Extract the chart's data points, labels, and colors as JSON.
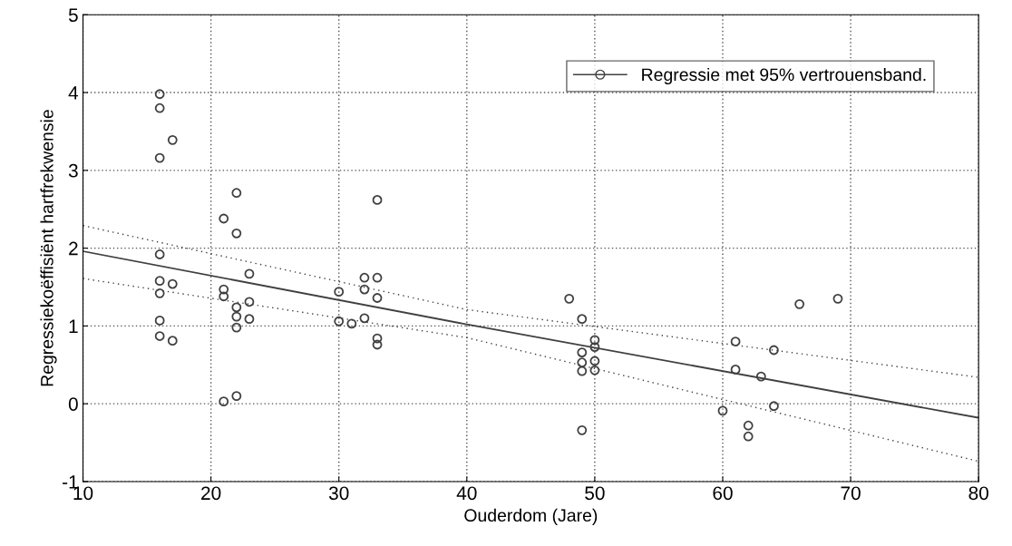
{
  "chart_data": {
    "type": "scatter",
    "xlabel": "Ouderdom (Jare)",
    "ylabel": "Regressiekoëffisiënt hartfrekwensie",
    "xlim": [
      10,
      80
    ],
    "xticks": [
      10,
      20,
      30,
      40,
      50,
      60,
      70,
      80
    ],
    "ylim": [
      -1,
      5
    ],
    "yticks": [
      -1,
      0,
      1,
      2,
      3,
      4,
      5
    ],
    "grid": true,
    "legend": "top right",
    "series": [
      {
        "name": "Regressie met 95% vertrouensband.",
        "marker": "circle",
        "color": "#404040",
        "x": [
          16,
          16,
          16,
          16,
          16,
          16,
          16,
          16,
          17,
          17,
          17,
          21,
          21,
          21,
          21,
          22,
          22,
          22,
          22,
          22,
          22,
          23,
          23,
          23,
          30,
          30,
          31,
          32,
          32,
          32,
          33,
          33,
          33,
          33,
          33,
          48,
          49,
          49,
          49,
          49,
          49,
          50,
          50,
          50,
          50,
          60,
          61,
          61,
          62,
          62,
          63,
          64,
          64,
          66,
          69
        ],
        "values": [
          3.98,
          3.8,
          3.16,
          1.92,
          1.58,
          1.42,
          1.07,
          0.87,
          3.39,
          1.54,
          0.81,
          2.38,
          1.47,
          1.38,
          0.03,
          2.71,
          2.19,
          1.24,
          1.12,
          0.98,
          0.1,
          1.67,
          1.31,
          1.09,
          1.44,
          1.06,
          1.03,
          1.62,
          1.47,
          1.1,
          2.62,
          1.62,
          1.36,
          0.84,
          0.76,
          1.35,
          1.09,
          0.66,
          0.53,
          0.42,
          -0.34,
          0.82,
          0.73,
          0.55,
          0.43,
          -0.09,
          0.8,
          0.44,
          -0.28,
          -0.42,
          0.35,
          0.69,
          -0.03,
          1.28,
          1.35
        ]
      },
      {
        "type": "line",
        "color": "#404040",
        "line_style": "solid",
        "x": [
          10,
          40,
          80
        ],
        "values": [
          1.96,
          1.02,
          -0.18
        ]
      },
      {
        "type": "line",
        "color": "#404040",
        "line_style": "dotted",
        "x": [
          10,
          40,
          80
        ],
        "values": [
          2.29,
          1.21,
          0.34
        ]
      },
      {
        "type": "line",
        "color": "#404040",
        "line_style": "dotted",
        "x": [
          10,
          40,
          80
        ],
        "values": [
          1.61,
          0.85,
          -0.74
        ]
      }
    ]
  }
}
